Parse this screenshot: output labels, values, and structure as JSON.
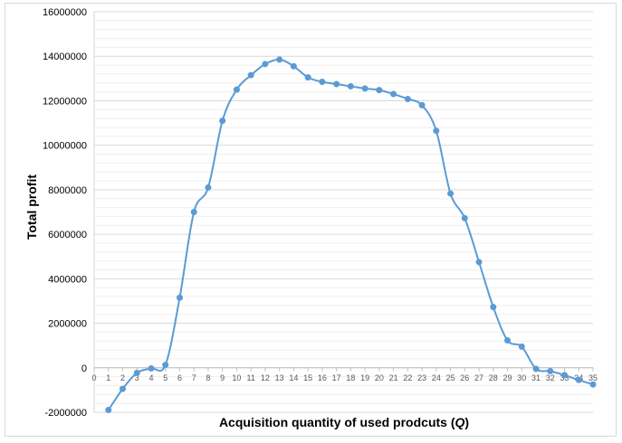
{
  "chart_data": {
    "type": "line",
    "title": "",
    "xlabel": "Acquisition quantity of used prodcuts (",
    "xlabel_var": "Q",
    "xlabel_end": ")",
    "ylabel": "Total profit",
    "xlim": [
      0,
      35
    ],
    "ylim": [
      -2000000,
      16000000
    ],
    "yticks": [
      -2000000,
      0,
      2000000,
      4000000,
      6000000,
      8000000,
      10000000,
      12000000,
      14000000,
      16000000
    ],
    "ytick_labels": [
      "-2000000",
      "0",
      "2000000",
      "4000000",
      "6000000",
      "8000000",
      "10000000",
      "12000000",
      "14000000",
      "16000000"
    ],
    "xticks": [
      0,
      1,
      2,
      3,
      4,
      5,
      6,
      7,
      8,
      9,
      10,
      11,
      12,
      13,
      14,
      15,
      16,
      17,
      18,
      19,
      20,
      21,
      22,
      23,
      24,
      25,
      26,
      27,
      28,
      29,
      30,
      31,
      32,
      33,
      34,
      35
    ],
    "grid": true,
    "smooth": true,
    "legend": "none",
    "colors": {
      "line": "#5b9bd5",
      "marker": "#5b9bd5",
      "grid": "#d9d9d9"
    },
    "series": [
      {
        "x": [
          1,
          2,
          3,
          4,
          5,
          6,
          7,
          8,
          9,
          10,
          11,
          12,
          13,
          14,
          15,
          16,
          17,
          18,
          19,
          20,
          21,
          22,
          23,
          24,
          25,
          26,
          27,
          28,
          29,
          30,
          31,
          32,
          33,
          34,
          35
        ],
        "values": [
          -1900000,
          -950000,
          -230000,
          -30000,
          130000,
          3150000,
          7000000,
          8100000,
          11100000,
          12500000,
          13150000,
          13650000,
          13850000,
          13550000,
          13050000,
          12850000,
          12750000,
          12650000,
          12550000,
          12480000,
          12300000,
          12080000,
          11800000,
          10650000,
          7830000,
          6720000,
          4750000,
          2730000,
          1230000,
          950000,
          -50000,
          -150000,
          -330000,
          -550000,
          -750000
        ]
      }
    ]
  }
}
